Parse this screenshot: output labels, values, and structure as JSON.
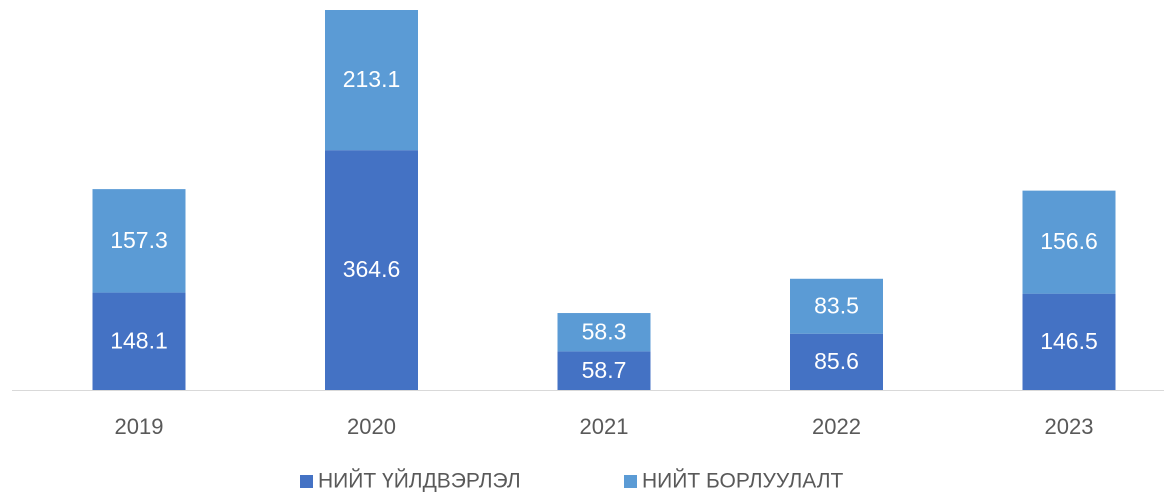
{
  "chart_data": {
    "type": "stacked_bar",
    "categories": [
      "2019",
      "2020",
      "2021",
      "2022",
      "2023"
    ],
    "series": [
      {
        "name": "НИЙТ ҮЙЛДВЭРЛЭЛ",
        "color": "#4472c4",
        "values": [
          148.1,
          364.6,
          58.7,
          85.6,
          146.5
        ]
      },
      {
        "name": "НИЙТ БОРЛУУЛАЛТ",
        "color": "#5b9bd5",
        "values": [
          157.3,
          213.1,
          58.3,
          83.5,
          156.6
        ]
      }
    ],
    "legend": "bottom"
  }
}
